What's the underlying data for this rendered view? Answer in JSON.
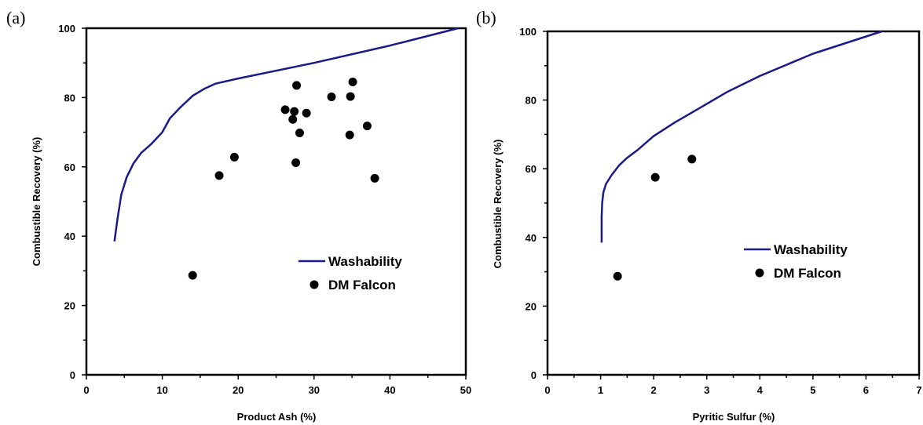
{
  "chart_data": [
    {
      "type": "scatter",
      "panel_label": "(a)",
      "xlabel": "Product Ash (%)",
      "ylabel": "Combustible Recovery (%)",
      "xlim": [
        0,
        50
      ],
      "ylim": [
        0,
        100
      ],
      "x_ticks": [
        "0",
        "10",
        "20",
        "30",
        "40",
        "50"
      ],
      "y_ticks": [
        "0",
        "20",
        "40",
        "60",
        "80",
        "100"
      ],
      "legend_position": "lower-right",
      "series": [
        {
          "name": "Washability",
          "kind": "line",
          "color": "#1a1a8c",
          "points": [
            [
              3.7,
              38.5
            ],
            [
              4.1,
              45
            ],
            [
              4.6,
              52
            ],
            [
              5.3,
              57
            ],
            [
              6.2,
              61
            ],
            [
              7.2,
              64
            ],
            [
              8.5,
              66.5
            ],
            [
              10.0,
              70
            ],
            [
              11.0,
              74
            ],
            [
              12.3,
              77
            ],
            [
              14.0,
              80.5
            ],
            [
              15.5,
              82.5
            ],
            [
              17.0,
              84
            ],
            [
              20.0,
              85.5
            ],
            [
              30.0,
              90
            ],
            [
              40.0,
              95
            ],
            [
              49.0,
              100
            ]
          ]
        },
        {
          "name": "DM Falcon",
          "kind": "scatter",
          "color": "#000000",
          "points": [
            [
              14.0,
              28.7
            ],
            [
              17.5,
              57.5
            ],
            [
              19.5,
              62.8
            ],
            [
              26.2,
              76.5
            ],
            [
              27.2,
              73.7
            ],
            [
              27.4,
              76.0
            ],
            [
              27.7,
              83.5
            ],
            [
              27.6,
              61.2
            ],
            [
              28.1,
              69.8
            ],
            [
              29.0,
              75.5
            ],
            [
              32.3,
              80.2
            ],
            [
              34.7,
              69.2
            ],
            [
              34.8,
              80.3
            ],
            [
              35.1,
              84.5
            ],
            [
              37.0,
              71.8
            ],
            [
              38.0,
              56.7
            ]
          ]
        }
      ]
    },
    {
      "type": "scatter",
      "panel_label": "(b)",
      "xlabel": "Pyritic Sulfur (%)",
      "ylabel": "Combustible Recovery (%)",
      "xlim": [
        0,
        7
      ],
      "ylim": [
        0,
        100
      ],
      "x_ticks": [
        "0",
        "1",
        "2",
        "3",
        "4",
        "5",
        "6",
        "7"
      ],
      "y_ticks": [
        "0",
        "20",
        "40",
        "60",
        "80",
        "100"
      ],
      "legend_position": "lower-right",
      "series": [
        {
          "name": "Washability",
          "kind": "line",
          "color": "#1a1a8c",
          "points": [
            [
              1.02,
              38.5
            ],
            [
              1.02,
              46
            ],
            [
              1.03,
              50
            ],
            [
              1.05,
              53
            ],
            [
              1.1,
              55.5
            ],
            [
              1.2,
              58
            ],
            [
              1.35,
              61
            ],
            [
              1.5,
              63.2
            ],
            [
              1.7,
              65.5
            ],
            [
              2.0,
              69.5
            ],
            [
              2.4,
              73.5
            ],
            [
              2.9,
              78
            ],
            [
              3.4,
              82.5
            ],
            [
              4.0,
              87
            ],
            [
              5.0,
              93.5
            ],
            [
              6.3,
              100
            ]
          ]
        },
        {
          "name": "DM Falcon",
          "kind": "scatter",
          "color": "#000000",
          "points": [
            [
              1.32,
              28.7
            ],
            [
              2.03,
              57.5
            ],
            [
              2.72,
              62.8
            ]
          ]
        }
      ]
    }
  ]
}
